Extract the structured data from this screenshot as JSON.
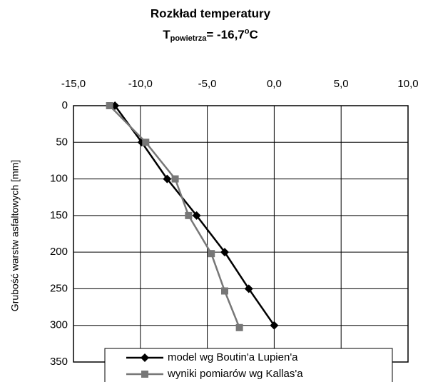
{
  "chart_data": {
    "type": "line",
    "title": "Rozkład temperatury",
    "subtitle": [
      "T",
      "powietrza",
      "= -16,7",
      "o",
      "C"
    ],
    "y_label": "Grubość warstw asfaltowych [mm]",
    "xlim": [
      -15,
      10
    ],
    "xticks": [
      {
        "value": -15,
        "label": "-15,0"
      },
      {
        "value": -10,
        "label": "-10,0"
      },
      {
        "value": -5,
        "label": "-5,0"
      },
      {
        "value": 0,
        "label": "0,0"
      },
      {
        "value": 5,
        "label": "5,0"
      },
      {
        "value": 10,
        "label": "10,0"
      }
    ],
    "ylim": [
      0,
      350
    ],
    "yticks": [
      0,
      50,
      100,
      150,
      200,
      250,
      300,
      350
    ],
    "y_reversed": true,
    "x_axis_position": "top",
    "grid": true,
    "legend": "bottom",
    "series": [
      {
        "name": "model wg Boutin'a Lupien'a",
        "color": "#000000",
        "marker": "diamond",
        "x": [
          -11.9,
          -9.9,
          -8.0,
          -5.8,
          -3.7,
          -1.9,
          0.0
        ],
        "values": [
          0,
          50,
          100,
          150,
          200,
          250,
          300
        ]
      },
      {
        "name": "wyniki pomiarów wg Kallas'a",
        "color": "#777777",
        "marker": "square",
        "x": [
          -12.3,
          -9.6,
          -7.4,
          -6.4,
          -4.7,
          -3.7,
          -2.6
        ],
        "values": [
          0,
          50,
          100,
          150,
          202,
          253,
          303
        ]
      }
    ]
  }
}
